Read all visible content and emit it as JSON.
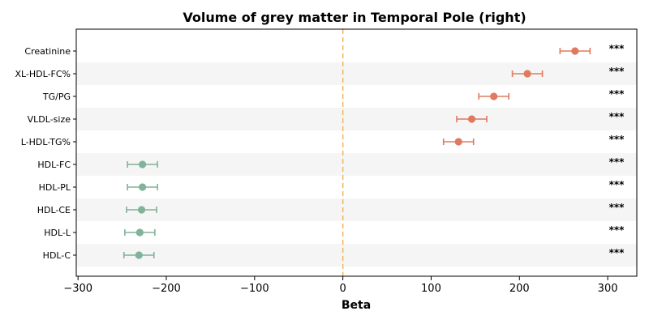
{
  "chart_data": {
    "type": "forest",
    "title": "Volume of grey matter in Temporal Pole (right)",
    "xlabel": "Beta",
    "ylabel": "",
    "xlim": [
      -302,
      333
    ],
    "xticks": [
      -300,
      -200,
      -100,
      0,
      100,
      200,
      300
    ],
    "xtick_labels": [
      "−300",
      "−200",
      "−100",
      "0",
      "100",
      "200",
      "300"
    ],
    "reference_line": 0,
    "grid": false,
    "row_shading": "alternating",
    "colors": {
      "positive": "#e07a5f",
      "negative": "#81b29a",
      "reference_line": "#f2b45a",
      "band": "#f5f5f5"
    },
    "rows": [
      {
        "label": "Creatinine",
        "beta": 263,
        "ci_low": 246,
        "ci_high": 280,
        "significance": "***"
      },
      {
        "label": "XL-HDL-FC%",
        "beta": 209,
        "ci_low": 192,
        "ci_high": 226,
        "significance": "***"
      },
      {
        "label": "TG/PG",
        "beta": 171,
        "ci_low": 154,
        "ci_high": 188,
        "significance": "***"
      },
      {
        "label": "VLDL-size",
        "beta": 146,
        "ci_low": 129,
        "ci_high": 163,
        "significance": "***"
      },
      {
        "label": "L-HDL-TG%",
        "beta": 131,
        "ci_low": 114,
        "ci_high": 148,
        "significance": "***"
      },
      {
        "label": "HDL-FC",
        "beta": -227,
        "ci_low": -244,
        "ci_high": -210,
        "significance": "***"
      },
      {
        "label": "HDL-PL",
        "beta": -227,
        "ci_low": -244,
        "ci_high": -210,
        "significance": "***"
      },
      {
        "label": "HDL-CE",
        "beta": -228,
        "ci_low": -245,
        "ci_high": -211,
        "significance": "***"
      },
      {
        "label": "HDL-L",
        "beta": -230,
        "ci_low": -247,
        "ci_high": -213,
        "significance": "***"
      },
      {
        "label": "HDL-C",
        "beta": -231,
        "ci_low": -248,
        "ci_high": -214,
        "significance": "***"
      }
    ]
  }
}
